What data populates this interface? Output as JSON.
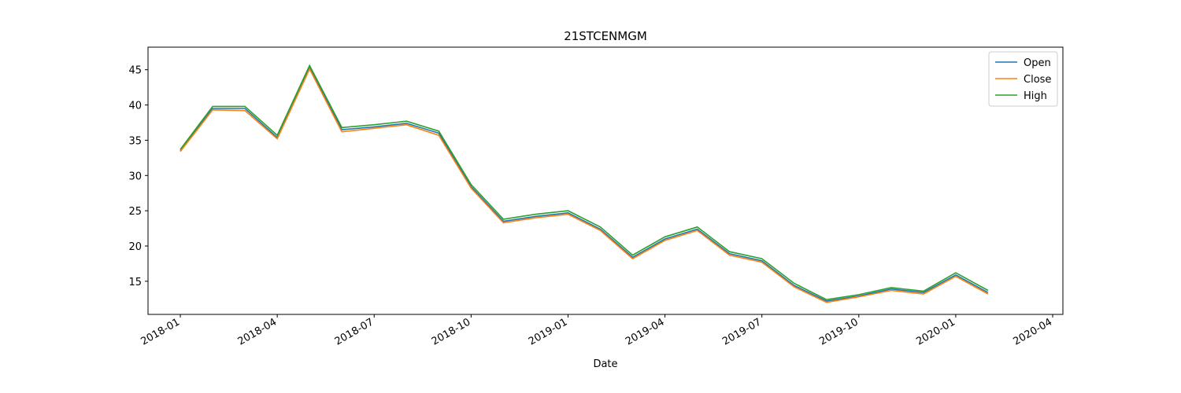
{
  "chart_data": {
    "type": "line",
    "title": "21STCENMGM",
    "xlabel": "Date",
    "x": [
      "2018-01",
      "2018-02",
      "2018-03",
      "2018-04",
      "2018-05",
      "2018-06",
      "2018-07",
      "2018-08",
      "2018-09",
      "2018-10",
      "2018-11",
      "2018-12",
      "2019-01",
      "2019-02",
      "2019-03",
      "2019-04",
      "2019-05",
      "2019-06",
      "2019-07",
      "2019-08",
      "2019-09",
      "2019-10",
      "2019-11",
      "2019-12",
      "2020-01",
      "2020-02"
    ],
    "series": [
      {
        "name": "Open",
        "color": "#1f77b4",
        "values": [
          33.5,
          39.5,
          39.5,
          35.4,
          45.3,
          36.5,
          36.9,
          37.4,
          36.0,
          28.4,
          23.5,
          24.2,
          24.7,
          22.4,
          18.4,
          21.0,
          22.4,
          18.9,
          17.9,
          14.4,
          12.2,
          12.9,
          13.9,
          13.4,
          15.9,
          13.4
        ]
      },
      {
        "name": "Close",
        "color": "#ff7f0e",
        "values": [
          33.4,
          39.3,
          39.2,
          35.2,
          45.1,
          36.2,
          36.7,
          37.2,
          35.7,
          28.2,
          23.3,
          24.0,
          24.5,
          22.2,
          18.2,
          20.8,
          22.2,
          18.7,
          17.7,
          14.2,
          12.0,
          12.8,
          13.7,
          13.2,
          15.7,
          13.2
        ]
      },
      {
        "name": "High",
        "color": "#2ca02c",
        "values": [
          33.7,
          39.8,
          39.8,
          35.7,
          45.6,
          36.8,
          37.2,
          37.7,
          36.3,
          28.7,
          23.8,
          24.5,
          25.0,
          22.7,
          18.7,
          21.3,
          22.7,
          19.2,
          18.2,
          14.7,
          12.4,
          13.1,
          14.1,
          13.6,
          16.2,
          13.7
        ]
      }
    ],
    "xlim": [
      "2017-12",
      "2020-04"
    ],
    "xticks": [
      "2018-01",
      "2018-04",
      "2018-07",
      "2018-10",
      "2019-01",
      "2019-04",
      "2019-07",
      "2019-10",
      "2020-01",
      "2020-04"
    ],
    "ylim": [
      10.3,
      48.2
    ],
    "yticks": [
      15,
      20,
      25,
      30,
      35,
      40,
      45
    ],
    "grid": false,
    "legend": "upper right"
  }
}
